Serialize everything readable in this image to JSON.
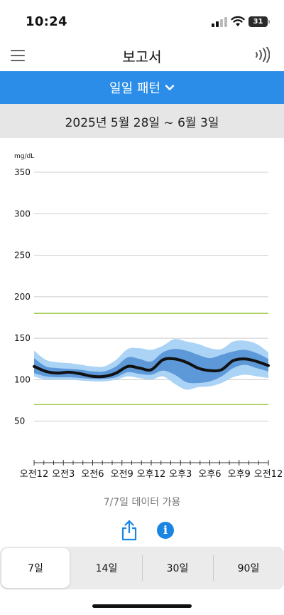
{
  "status_bar": {
    "time": "10:24",
    "battery": "31"
  },
  "nav": {
    "title": "보고서"
  },
  "pattern": {
    "label": "일일 패턴"
  },
  "date_range": "2025년 5월 28일 ~ 6월 3일",
  "chart_data": {
    "type": "area",
    "ylabel": "mg/dL",
    "ylim": [
      0,
      350
    ],
    "yticks": [
      "350",
      "300",
      "250",
      "200",
      "150",
      "100",
      "50"
    ],
    "x_tick_labels": [
      "오전12",
      "오전3",
      "오전6",
      "오전9",
      "오후12",
      "오후3",
      "오후6",
      "오후9",
      "오전12"
    ],
    "x_hours": [
      0,
      1,
      2,
      3,
      4,
      5,
      6,
      7,
      8,
      9,
      10,
      11,
      12,
      13,
      14,
      15,
      16,
      17,
      18,
      19,
      20,
      21,
      22,
      23,
      24
    ],
    "target_range": [
      70,
      180
    ],
    "colors": {
      "median": "#111111",
      "inner_band": "#5d98d8",
      "outer_band": "#aad3f5",
      "target_lines": "#9bc94a",
      "grid": "#cccccc"
    },
    "series": [
      {
        "name": "median",
        "values": [
          116,
          110,
          108,
          109,
          107,
          104,
          104,
          108,
          116,
          114,
          112,
          124,
          125,
          121,
          114,
          111,
          112,
          123,
          125,
          122,
          117
        ]
      },
      {
        "name": "p25",
        "values": [
          108,
          104,
          103,
          103,
          102,
          101,
          101,
          103,
          109,
          107,
          106,
          111,
          106,
          97,
          96,
          98,
          104,
          114,
          118,
          114,
          110
        ]
      },
      {
        "name": "p75",
        "values": [
          126,
          116,
          114,
          113,
          112,
          110,
          110,
          116,
          127,
          125,
          122,
          133,
          137,
          135,
          130,
          126,
          130,
          134,
          136,
          132,
          125
        ]
      },
      {
        "name": "p10",
        "values": [
          104,
          100,
          100,
          100,
          99,
          98,
          98,
          100,
          104,
          102,
          100,
          104,
          95,
          88,
          91,
          92,
          96,
          103,
          106,
          104,
          102
        ]
      },
      {
        "name": "p90",
        "values": [
          135,
          124,
          121,
          120,
          118,
          116,
          116,
          124,
          137,
          138,
          136,
          141,
          149,
          146,
          143,
          138,
          137,
          146,
          147,
          143,
          133
        ]
      }
    ],
    "series_x_hours": [
      0,
      1.2,
      2.4,
      3.6,
      4.8,
      6,
      7.2,
      8.4,
      9.6,
      10.8,
      12,
      13.2,
      14.4,
      15.6,
      16.8,
      18,
      19.2,
      20.4,
      21.6,
      22.8,
      24
    ]
  },
  "availability": "7/7일 데이터 가용",
  "segments": [
    {
      "label": "7일",
      "active": true
    },
    {
      "label": "14일",
      "active": false
    },
    {
      "label": "30일",
      "active": false
    },
    {
      "label": "90일",
      "active": false
    }
  ]
}
